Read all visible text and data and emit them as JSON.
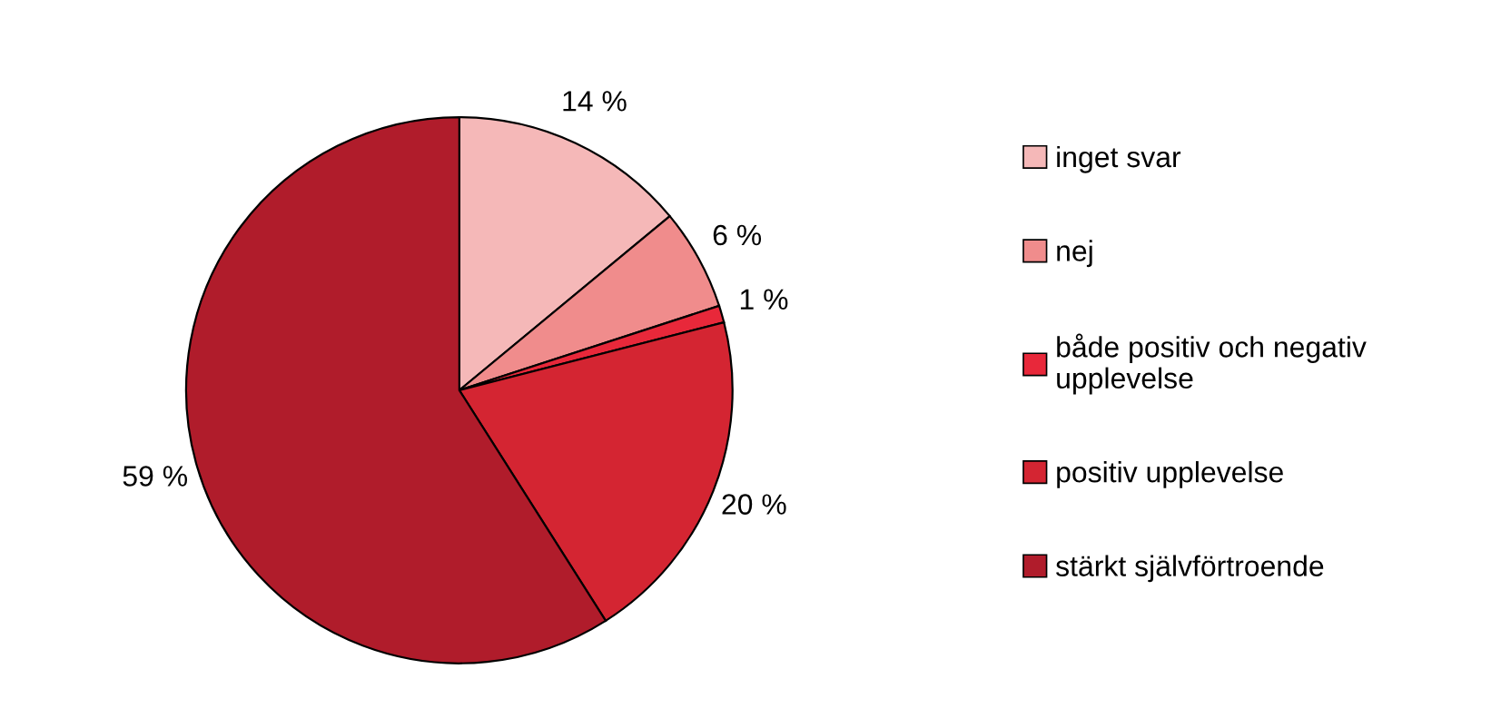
{
  "chart_data": {
    "type": "pie",
    "categories": [
      "inget svar",
      "nej",
      "både positiv och negativ\nupplevelse",
      "positiv upplevelse",
      "stärkt självförtroende"
    ],
    "values": [
      14,
      6,
      1,
      20,
      59
    ],
    "value_labels": [
      "14 %",
      "6 %",
      "1 %",
      "20 %",
      "59 %"
    ],
    "colors": [
      "#f5b8b8",
      "#f08c8c",
      "#e8283a",
      "#d42532",
      "#b01c2b"
    ],
    "legend": "right"
  }
}
